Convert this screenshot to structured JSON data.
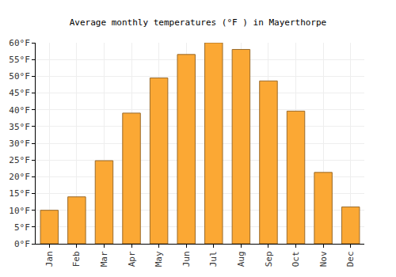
{
  "chart_data": {
    "type": "bar",
    "title": "Average monthly temperatures (°F ) in Mayerthorpe",
    "categories": [
      "Jan",
      "Feb",
      "Mar",
      "Apr",
      "May",
      "Jun",
      "Jul",
      "Aug",
      "Sep",
      "Oct",
      "Nov",
      "Dec"
    ],
    "values": [
      10,
      14,
      24.8,
      39,
      49.5,
      56.5,
      60,
      58,
      48.6,
      39.6,
      21.3,
      11
    ],
    "color": "#fba834",
    "ylim": [
      0,
      60
    ],
    "yticks": [
      {
        "value": 0,
        "label": "0°F"
      },
      {
        "value": 5,
        "label": "5°F"
      },
      {
        "value": 10,
        "label": "10°F"
      },
      {
        "value": 15,
        "label": "15°F"
      },
      {
        "value": 20,
        "label": "20°F"
      },
      {
        "value": 25,
        "label": "25°F"
      },
      {
        "value": 30,
        "label": "30°F"
      },
      {
        "value": 35,
        "label": "35°F"
      },
      {
        "value": 40,
        "label": "40°F"
      },
      {
        "value": 45,
        "label": "45°F"
      },
      {
        "value": 50,
        "label": "50°F"
      },
      {
        "value": 55,
        "label": "55°F"
      },
      {
        "value": 60,
        "label": "60°F"
      }
    ],
    "grid": true
  }
}
